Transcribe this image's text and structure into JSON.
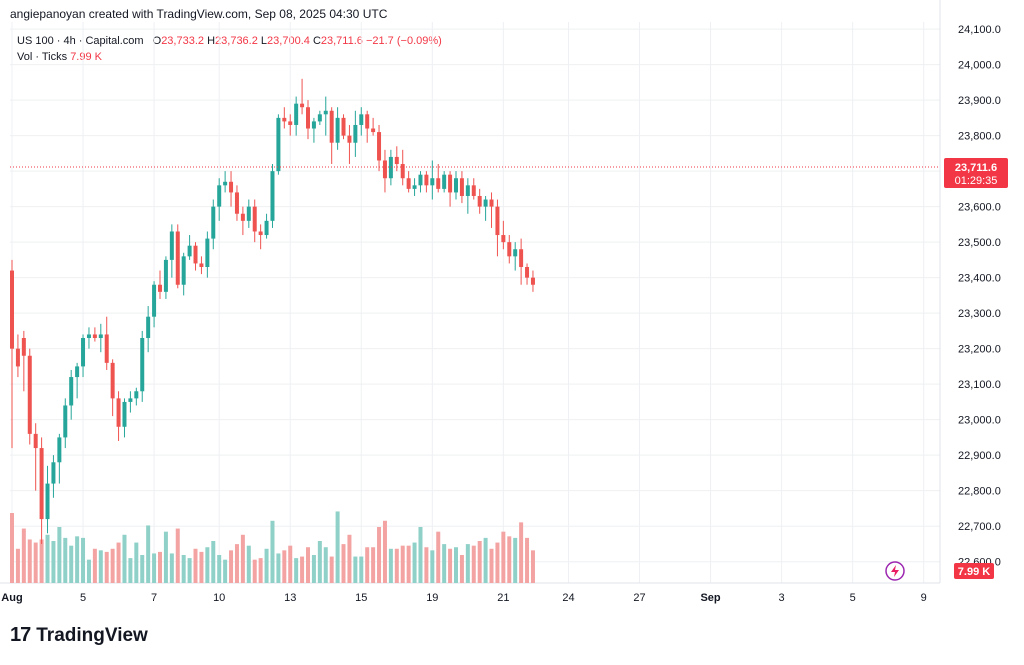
{
  "header": {
    "attribution": "angiepanoyan created with TradingView.com, Sep 08, 2025 04:30 UTC"
  },
  "legend": {
    "symbol": "US 100 · 4h · Capital.com",
    "o_label": "O",
    "o_value": "23,733.2",
    "h_label": "H",
    "h_value": "23,736.2",
    "l_label": "L",
    "l_value": "23,700.4",
    "c_label": "C",
    "c_value": "23,711.6",
    "change": "−21.7 (−0.09%)",
    "vol_label": "Vol · Ticks",
    "vol_value": "7.99 K"
  },
  "price_badge": {
    "value": "23,711.6",
    "countdown": "01:29:35"
  },
  "volume_badge": {
    "value": "7.99 K"
  },
  "footer": {
    "logo": "17",
    "brand": "TradingView"
  },
  "colors": {
    "up": "#26a69a",
    "down": "#ef5350",
    "up_vol": "#8fd1c8",
    "down_vol": "#f4a3a3",
    "grid": "#eef0f3",
    "price_line": "#f23645"
  },
  "icons": {
    "lightning": "lightning-icon"
  },
  "chart_data": {
    "type": "candlestick",
    "title": "US 100 · 4h · Capital.com",
    "ylim": [
      22540,
      24120
    ],
    "y_ticks": [
      "24,100.0",
      "24,000.0",
      "23,900.0",
      "23,800.0",
      "23,700.0",
      "23,600.0",
      "23,500.0",
      "23,400.0",
      "23,300.0",
      "23,200.0",
      "23,100.0",
      "23,000.0",
      "22,900.0",
      "22,800.0",
      "22,700.0",
      "22,600.0"
    ],
    "y_tick_values": [
      24100,
      24000,
      23900,
      23800,
      23700,
      23600,
      23500,
      23400,
      23300,
      23200,
      23100,
      23000,
      22900,
      22800,
      22700,
      22600
    ],
    "x_ticks": [
      {
        "label": "Aug",
        "index": 0,
        "bold": true
      },
      {
        "label": "5",
        "index": 12
      },
      {
        "label": "7",
        "index": 24
      },
      {
        "label": "10",
        "index": 35
      },
      {
        "label": "13",
        "index": 47
      },
      {
        "label": "15",
        "index": 59
      },
      {
        "label": "19",
        "index": 71
      },
      {
        "label": "21",
        "index": 83
      },
      {
        "label": "24",
        "index": 94
      },
      {
        "label": "27",
        "index": 106
      },
      {
        "label": "Sep",
        "index": 118,
        "bold": true
      },
      {
        "label": "3",
        "index": 130
      },
      {
        "label": "5",
        "index": 142
      },
      {
        "label": "9",
        "index": 154
      }
    ],
    "last_price": 23711.6,
    "volume_max": 9000,
    "candles": [
      [
        23420,
        23450,
        22920,
        23200,
        4500
      ],
      [
        23200,
        23240,
        23120,
        23150,
        2200
      ],
      [
        23230,
        23250,
        23080,
        23180,
        3500
      ],
      [
        23180,
        23200,
        22930,
        22960,
        2800
      ],
      [
        22960,
        22990,
        22800,
        22920,
        2600
      ],
      [
        22920,
        22950,
        22650,
        22720,
        2800
      ],
      [
        22720,
        22870,
        22680,
        22820,
        3100
      ],
      [
        22820,
        22900,
        22780,
        22880,
        2700
      ],
      [
        22880,
        22960,
        22820,
        22950,
        3600
      ],
      [
        22950,
        23060,
        22920,
        23040,
        2900
      ],
      [
        23040,
        23140,
        23000,
        23120,
        2400
      ],
      [
        23120,
        23160,
        23060,
        23150,
        3000
      ],
      [
        23150,
        23240,
        23120,
        23230,
        2900
      ],
      [
        23230,
        23260,
        23200,
        23240,
        1500
      ],
      [
        23240,
        23260,
        23220,
        23230,
        2200
      ],
      [
        23230,
        23270,
        23190,
        23240,
        2100
      ],
      [
        23240,
        23290,
        23140,
        23160,
        2000
      ],
      [
        23160,
        23170,
        23010,
        23060,
        2200
      ],
      [
        23060,
        23080,
        22940,
        22980,
        2600
      ],
      [
        22980,
        23060,
        22950,
        23050,
        3100
      ],
      [
        23050,
        23080,
        23020,
        23060,
        1600
      ],
      [
        23060,
        23090,
        23040,
        23080,
        2600
      ],
      [
        23080,
        23250,
        23050,
        23230,
        1800
      ],
      [
        23230,
        23320,
        23190,
        23290,
        3700
      ],
      [
        23290,
        23390,
        23260,
        23380,
        1900
      ],
      [
        23380,
        23420,
        23340,
        23360,
        2000
      ],
      [
        23360,
        23460,
        23340,
        23450,
        3300
      ],
      [
        23450,
        23550,
        23400,
        23530,
        1900
      ],
      [
        23530,
        23550,
        23370,
        23380,
        3500
      ],
      [
        23380,
        23470,
        23350,
        23460,
        1800
      ],
      [
        23460,
        23520,
        23450,
        23490,
        1600
      ],
      [
        23490,
        23500,
        23420,
        23440,
        2200
      ],
      [
        23440,
        23460,
        23410,
        23430,
        2000
      ],
      [
        23430,
        23530,
        23400,
        23510,
        2300
      ],
      [
        23510,
        23620,
        23480,
        23600,
        2700
      ],
      [
        23600,
        23680,
        23560,
        23660,
        1800
      ],
      [
        23660,
        23700,
        23640,
        23670,
        1500
      ],
      [
        23670,
        23700,
        23600,
        23640,
        2100
      ],
      [
        23640,
        23660,
        23560,
        23580,
        2500
      ],
      [
        23580,
        23600,
        23520,
        23560,
        3100
      ],
      [
        23560,
        23620,
        23540,
        23600,
        2400
      ],
      [
        23600,
        23620,
        23500,
        23530,
        1500
      ],
      [
        23530,
        23550,
        23480,
        23520,
        1600
      ],
      [
        23520,
        23580,
        23510,
        23560,
        2200
      ],
      [
        23560,
        23720,
        23540,
        23700,
        4000
      ],
      [
        23700,
        23860,
        23690,
        23850,
        1900
      ],
      [
        23850,
        23880,
        23820,
        23840,
        2100
      ],
      [
        23840,
        23860,
        23800,
        23830,
        2400
      ],
      [
        23830,
        23910,
        23800,
        23890,
        1600
      ],
      [
        23890,
        23960,
        23860,
        23880,
        1700
      ],
      [
        23880,
        23900,
        23790,
        23820,
        2300
      ],
      [
        23820,
        23850,
        23780,
        23840,
        1800
      ],
      [
        23840,
        23870,
        23830,
        23860,
        2700
      ],
      [
        23860,
        23910,
        23800,
        23870,
        2300
      ],
      [
        23870,
        23880,
        23720,
        23780,
        1700
      ],
      [
        23780,
        23880,
        23760,
        23850,
        4600
      ],
      [
        23850,
        23860,
        23790,
        23800,
        2500
      ],
      [
        23800,
        23830,
        23720,
        23780,
        3100
      ],
      [
        23780,
        23870,
        23740,
        23830,
        1700
      ],
      [
        23830,
        23880,
        23800,
        23860,
        1700
      ],
      [
        23860,
        23870,
        23780,
        23820,
        2300
      ],
      [
        23820,
        23850,
        23800,
        23810,
        2300
      ],
      [
        23810,
        23830,
        23700,
        23730,
        3600
      ],
      [
        23730,
        23760,
        23640,
        23680,
        4000
      ],
      [
        23680,
        23760,
        23660,
        23740,
        2200
      ],
      [
        23740,
        23770,
        23700,
        23720,
        2200
      ],
      [
        23720,
        23760,
        23660,
        23680,
        2400
      ],
      [
        23680,
        23700,
        23640,
        23650,
        2400
      ],
      [
        23650,
        23680,
        23630,
        23660,
        2600
      ],
      [
        23660,
        23700,
        23640,
        23690,
        3600
      ],
      [
        23690,
        23700,
        23640,
        23660,
        2300
      ],
      [
        23660,
        23730,
        23620,
        23680,
        2100
      ],
      [
        23680,
        23720,
        23640,
        23650,
        3300
      ],
      [
        23650,
        23700,
        23640,
        23690,
        2500
      ],
      [
        23690,
        23700,
        23600,
        23640,
        2200
      ],
      [
        23640,
        23700,
        23620,
        23680,
        2300
      ],
      [
        23680,
        23700,
        23610,
        23630,
        1800
      ],
      [
        23630,
        23680,
        23580,
        23660,
        2500
      ],
      [
        23660,
        23680,
        23620,
        23630,
        2400
      ],
      [
        23630,
        23650,
        23580,
        23600,
        2700
      ],
      [
        23600,
        23630,
        23560,
        23620,
        2900
      ],
      [
        23620,
        23640,
        23540,
        23600,
        2200
      ],
      [
        23600,
        23620,
        23460,
        23520,
        2600
      ],
      [
        23520,
        23560,
        23480,
        23500,
        3300
      ],
      [
        23500,
        23520,
        23440,
        23460,
        3000
      ],
      [
        23460,
        23500,
        23420,
        23480,
        2900
      ],
      [
        23480,
        23510,
        23380,
        23430,
        3900
      ],
      [
        23430,
        23440,
        23380,
        23400,
        2900
      ],
      [
        23400,
        23420,
        23360,
        23380,
        2100
      ]
    ]
  }
}
